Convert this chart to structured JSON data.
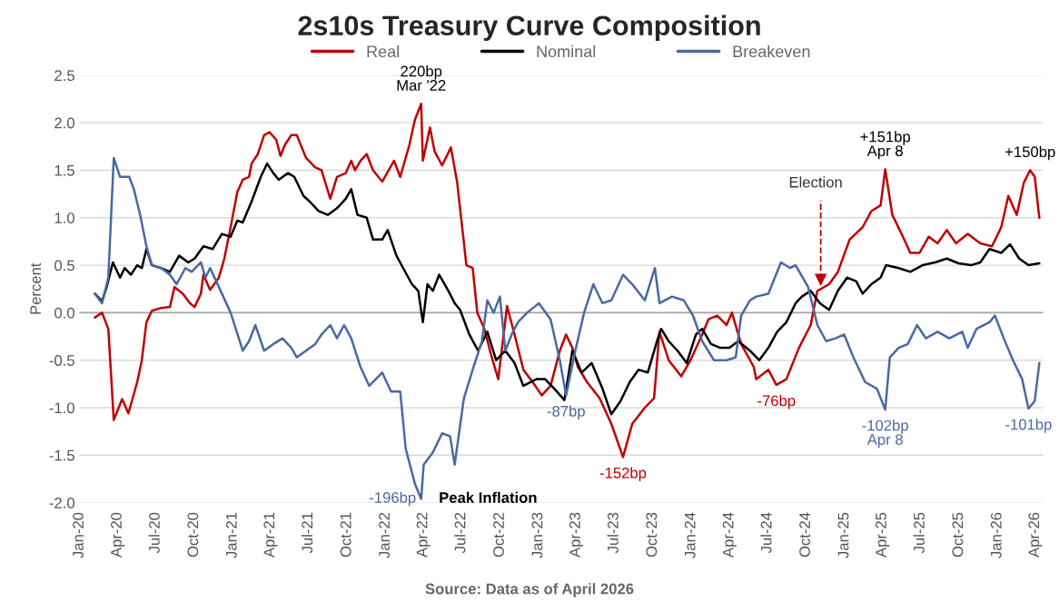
{
  "chart_data": {
    "type": "line",
    "title": "2s10s Treasury Curve Composition",
    "ylabel": "Percent",
    "xlim": [
      "2020-01-01",
      "2026-04-20"
    ],
    "xticks": [
      {
        "value": "2020-01-01",
        "label": "Jan-20"
      },
      {
        "value": "2020-04-01",
        "label": "Apr-20"
      },
      {
        "value": "2020-07-01",
        "label": "Jul-20"
      },
      {
        "value": "2020-10-01",
        "label": "Oct-20"
      },
      {
        "value": "2021-01-01",
        "label": "Jan-21"
      },
      {
        "value": "2021-04-01",
        "label": "Apr-21"
      },
      {
        "value": "2021-07-01",
        "label": "Jul-21"
      },
      {
        "value": "2021-10-01",
        "label": "Oct-21"
      },
      {
        "value": "2022-01-01",
        "label": "Jan-22"
      },
      {
        "value": "2022-04-01",
        "label": "Apr-22"
      },
      {
        "value": "2022-07-01",
        "label": "Jul-22"
      },
      {
        "value": "2022-10-01",
        "label": "Oct-22"
      },
      {
        "value": "2023-01-01",
        "label": "Jan-23"
      },
      {
        "value": "2023-04-01",
        "label": "Apr-23"
      },
      {
        "value": "2023-07-01",
        "label": "Jul-23"
      },
      {
        "value": "2023-10-01",
        "label": "Oct-23"
      },
      {
        "value": "2024-01-01",
        "label": "Jan-24"
      },
      {
        "value": "2024-04-01",
        "label": "Apr-24"
      },
      {
        "value": "2024-07-01",
        "label": "Jul-24"
      },
      {
        "value": "2024-10-01",
        "label": "Oct-24"
      },
      {
        "value": "2025-01-01",
        "label": "Jan-25"
      },
      {
        "value": "2025-04-01",
        "label": "Apr-25"
      },
      {
        "value": "2025-07-01",
        "label": "Jul-25"
      },
      {
        "value": "2025-10-01",
        "label": "Oct-25"
      },
      {
        "value": "2026-01-01",
        "label": "Jan-26"
      },
      {
        "value": "2026-04-01",
        "label": "Apr-26"
      }
    ],
    "ylim": [
      -2.0,
      2.5
    ],
    "yticks": [
      {
        "value": -2.0,
        "label": "-2.0"
      },
      {
        "value": -1.5,
        "label": "-1.5"
      },
      {
        "value": -1.0,
        "label": "-1.0"
      },
      {
        "value": -0.5,
        "label": "-0.5"
      },
      {
        "value": 0.0,
        "label": "0.0"
      },
      {
        "value": 0.5,
        "label": "0.5"
      },
      {
        "value": 1.0,
        "label": "1.0"
      },
      {
        "value": 1.5,
        "label": "1.5"
      },
      {
        "value": 2.0,
        "label": "2.0"
      },
      {
        "value": 2.5,
        "label": "2.5"
      }
    ],
    "grid": "y",
    "legend": "top",
    "line_style": "solid",
    "ref_lines": [
      {
        "axis": "y",
        "value": 0.0,
        "color": "#a6a6a6"
      },
      {
        "axis": "x",
        "value": "2024-11-05",
        "label": "Election",
        "color": "#c00000",
        "line_style": "dashed"
      }
    ],
    "series": [
      {
        "name": "Real",
        "color": "#c00000",
        "x": [
          "2020-02-07",
          "2020-02-24",
          "2020-03-10",
          "2020-03-23",
          "2020-04-12",
          "2020-04-27",
          "2020-05-18",
          "2020-05-29",
          "2020-06-09",
          "2020-06-22",
          "2020-07-14",
          "2020-08-04",
          "2020-08-15",
          "2020-09-04",
          "2020-09-21",
          "2020-10-02",
          "2020-10-17",
          "2020-10-23",
          "2020-11-08",
          "2020-11-29",
          "2020-12-12",
          "2020-12-27",
          "2021-01-12",
          "2021-01-25",
          "2021-02-09",
          "2021-02-15",
          "2021-03-02",
          "2021-03-17",
          "2021-03-30",
          "2021-04-15",
          "2021-04-25",
          "2021-05-06",
          "2021-05-21",
          "2021-06-03",
          "2021-06-25",
          "2021-07-17",
          "2021-08-01",
          "2021-08-22",
          "2021-09-07",
          "2021-09-28",
          "2021-10-11",
          "2021-10-20",
          "2021-11-02",
          "2021-11-17",
          "2021-12-02",
          "2021-12-24",
          "2022-01-21",
          "2022-02-05",
          "2022-02-27",
          "2022-03-12",
          "2022-03-27",
          "2022-03-31",
          "2022-04-17",
          "2022-04-28",
          "2022-05-16",
          "2022-06-06",
          "2022-06-21",
          "2022-07-13",
          "2022-07-28",
          "2022-08-08",
          "2022-08-25",
          "2022-09-09",
          "2022-09-27",
          "2022-10-18",
          "2022-11-05",
          "2022-11-26",
          "2022-12-18",
          "2023-01-09",
          "2023-01-30",
          "2023-02-21",
          "2023-03-08",
          "2023-03-23",
          "2023-04-05",
          "2023-04-27",
          "2023-05-27",
          "2023-06-24",
          "2023-07-22",
          "2023-08-13",
          "2023-09-12",
          "2023-10-04",
          "2023-10-17",
          "2023-11-08",
          "2023-12-08",
          "2023-12-30",
          "2024-01-27",
          "2024-02-11",
          "2024-03-03",
          "2024-03-25",
          "2024-04-07",
          "2024-04-29",
          "2024-05-29",
          "2024-06-04",
          "2024-07-03",
          "2024-07-22",
          "2024-08-15",
          "2024-09-14",
          "2024-10-12",
          "2024-10-28",
          "2024-11-25",
          "2024-12-16",
          "2025-01-13",
          "2025-02-13",
          "2025-03-06",
          "2025-03-28",
          "2025-04-08",
          "2025-04-25",
          "2025-05-17",
          "2025-06-07",
          "2025-06-29",
          "2025-07-21",
          "2025-08-11",
          "2025-09-02",
          "2025-09-24",
          "2025-10-22",
          "2025-11-21",
          "2025-12-19",
          "2026-01-10",
          "2026-01-27",
          "2026-02-16",
          "2026-03-05",
          "2026-03-20",
          "2026-03-31",
          "2026-04-11"
        ],
        "values": [
          -0.05,
          0.0,
          -0.17,
          -1.13,
          -0.91,
          -1.06,
          -0.73,
          -0.5,
          -0.1,
          0.02,
          0.05,
          0.06,
          0.27,
          0.2,
          0.1,
          0.06,
          0.2,
          0.4,
          0.24,
          0.37,
          0.57,
          0.9,
          1.27,
          1.4,
          1.43,
          1.57,
          1.67,
          1.87,
          1.9,
          1.82,
          1.65,
          1.77,
          1.87,
          1.87,
          1.63,
          1.53,
          1.5,
          1.2,
          1.43,
          1.47,
          1.6,
          1.5,
          1.6,
          1.67,
          1.5,
          1.38,
          1.6,
          1.43,
          1.77,
          2.03,
          2.2,
          1.6,
          1.95,
          1.7,
          1.55,
          1.74,
          1.37,
          0.5,
          0.47,
          0.0,
          -0.17,
          -0.43,
          -0.7,
          0.07,
          -0.23,
          -0.6,
          -0.73,
          -0.87,
          -0.77,
          -0.4,
          -0.23,
          -0.37,
          -0.57,
          -0.73,
          -0.9,
          -1.17,
          -1.52,
          -1.17,
          -1.0,
          -0.9,
          -0.2,
          -0.5,
          -0.67,
          -0.5,
          -0.23,
          -0.07,
          -0.03,
          -0.13,
          0.0,
          -0.33,
          -0.57,
          -0.7,
          -0.6,
          -0.76,
          -0.7,
          -0.37,
          -0.13,
          0.23,
          0.3,
          0.43,
          0.77,
          0.9,
          1.07,
          1.13,
          1.51,
          1.03,
          0.83,
          0.63,
          0.63,
          0.8,
          0.73,
          0.87,
          0.73,
          0.83,
          0.73,
          0.7,
          0.9,
          1.23,
          1.03,
          1.37,
          1.5,
          1.43,
          1.0
        ]
      },
      {
        "name": "Nominal",
        "color": "#000000",
        "x": [
          "2020-02-07",
          "2020-02-24",
          "2020-03-06",
          "2020-03-21",
          "2020-04-07",
          "2020-04-18",
          "2020-05-03",
          "2020-05-18",
          "2020-05-29",
          "2020-06-09",
          "2020-06-22",
          "2020-07-14",
          "2020-08-04",
          "2020-08-26",
          "2020-09-17",
          "2020-10-02",
          "2020-10-23",
          "2020-11-14",
          "2020-12-06",
          "2020-12-27",
          "2021-01-12",
          "2021-01-25",
          "2021-02-15",
          "2021-03-09",
          "2021-03-24",
          "2021-04-08",
          "2021-04-21",
          "2021-05-13",
          "2021-05-28",
          "2021-06-19",
          "2021-07-04",
          "2021-07-25",
          "2021-08-16",
          "2021-09-07",
          "2021-09-28",
          "2021-10-11",
          "2021-10-26",
          "2021-11-17",
          "2021-12-02",
          "2021-12-24",
          "2022-01-06",
          "2022-01-27",
          "2022-02-12",
          "2022-03-05",
          "2022-03-20",
          "2022-03-31",
          "2022-04-11",
          "2022-04-24",
          "2022-05-09",
          "2022-05-31",
          "2022-06-15",
          "2022-06-28",
          "2022-07-20",
          "2022-08-10",
          "2022-09-01",
          "2022-09-22",
          "2022-10-14",
          "2022-11-05",
          "2022-11-26",
          "2022-12-27",
          "2023-01-17",
          "2023-02-08",
          "2023-03-04",
          "2023-03-23",
          "2023-04-14",
          "2023-05-08",
          "2023-06-03",
          "2023-06-24",
          "2023-07-16",
          "2023-08-07",
          "2023-08-28",
          "2023-09-19",
          "2023-10-11",
          "2023-10-21",
          "2023-11-08",
          "2023-11-29",
          "2023-12-21",
          "2024-01-12",
          "2024-01-27",
          "2024-02-17",
          "2024-03-10",
          "2024-04-01",
          "2024-04-22",
          "2024-05-20",
          "2024-06-11",
          "2024-07-03",
          "2024-07-24",
          "2024-08-15",
          "2024-09-06",
          "2024-09-21",
          "2024-10-12",
          "2024-11-03",
          "2024-11-25",
          "2024-12-16",
          "2025-01-07",
          "2025-01-29",
          "2025-02-13",
          "2025-03-06",
          "2025-03-28",
          "2025-04-10",
          "2025-05-10",
          "2025-06-07",
          "2025-07-06",
          "2025-08-05",
          "2025-09-02",
          "2025-09-30",
          "2025-10-30",
          "2025-11-21",
          "2025-12-13",
          "2026-01-10",
          "2026-01-31",
          "2026-02-22",
          "2026-03-16",
          "2026-04-11"
        ],
        "values": [
          0.2,
          0.12,
          0.27,
          0.53,
          0.37,
          0.47,
          0.4,
          0.5,
          0.47,
          0.67,
          0.5,
          0.47,
          0.43,
          0.6,
          0.53,
          0.57,
          0.7,
          0.67,
          0.83,
          0.8,
          0.97,
          0.95,
          1.17,
          1.43,
          1.57,
          1.47,
          1.4,
          1.47,
          1.43,
          1.23,
          1.17,
          1.07,
          1.03,
          1.1,
          1.2,
          1.3,
          1.03,
          1.0,
          0.77,
          0.77,
          0.87,
          0.6,
          0.47,
          0.3,
          0.23,
          -0.1,
          0.3,
          0.23,
          0.4,
          0.23,
          0.1,
          0.03,
          -0.23,
          -0.4,
          -0.2,
          -0.5,
          -0.4,
          -0.53,
          -0.77,
          -0.7,
          -0.7,
          -0.8,
          -0.92,
          -0.4,
          -0.63,
          -0.53,
          -0.8,
          -1.07,
          -0.93,
          -0.73,
          -0.6,
          -0.63,
          -0.3,
          -0.17,
          -0.3,
          -0.4,
          -0.53,
          -0.23,
          -0.17,
          -0.33,
          -0.37,
          -0.37,
          -0.3,
          -0.4,
          -0.5,
          -0.37,
          -0.2,
          -0.1,
          0.1,
          0.17,
          0.23,
          0.1,
          0.03,
          0.23,
          0.37,
          0.33,
          0.2,
          0.3,
          0.37,
          0.5,
          0.47,
          0.43,
          0.5,
          0.53,
          0.57,
          0.52,
          0.5,
          0.53,
          0.67,
          0.63,
          0.72,
          0.57,
          0.5,
          0.52
        ]
      },
      {
        "name": "Breakeven",
        "color": "#4a69a3",
        "x": [
          "2020-02-07",
          "2020-02-24",
          "2020-03-10",
          "2020-03-23",
          "2020-04-07",
          "2020-04-29",
          "2020-05-10",
          "2020-05-25",
          "2020-06-09",
          "2020-06-22",
          "2020-07-14",
          "2020-08-04",
          "2020-08-20",
          "2020-09-10",
          "2020-09-25",
          "2020-10-17",
          "2020-10-28",
          "2020-11-08",
          "2020-11-29",
          "2020-12-27",
          "2021-01-25",
          "2021-02-09",
          "2021-02-24",
          "2021-03-17",
          "2021-04-08",
          "2021-04-30",
          "2021-05-21",
          "2021-06-03",
          "2021-06-25",
          "2021-07-17",
          "2021-08-01",
          "2021-08-22",
          "2021-09-07",
          "2021-09-24",
          "2021-10-11",
          "2021-11-02",
          "2021-11-23",
          "2021-12-24",
          "2022-01-14",
          "2022-02-05",
          "2022-02-18",
          "2022-03-12",
          "2022-03-27",
          "2022-04-02",
          "2022-04-24",
          "2022-05-16",
          "2022-06-04",
          "2022-06-15",
          "2022-07-07",
          "2022-07-28",
          "2022-08-19",
          "2022-09-01",
          "2022-09-16",
          "2022-10-01",
          "2022-10-14",
          "2022-10-29",
          "2022-11-13",
          "2022-12-05",
          "2023-01-02",
          "2023-01-30",
          "2023-02-21",
          "2023-03-08",
          "2023-03-30",
          "2023-04-20",
          "2023-05-12",
          "2023-06-03",
          "2023-06-24",
          "2023-07-22",
          "2023-08-13",
          "2023-09-12",
          "2023-10-06",
          "2023-10-17",
          "2023-11-16",
          "2023-12-14",
          "2024-01-05",
          "2024-01-27",
          "2024-02-24",
          "2024-03-25",
          "2024-04-16",
          "2024-04-29",
          "2024-05-20",
          "2024-06-04",
          "2024-07-03",
          "2024-08-02",
          "2024-08-24",
          "2024-09-06",
          "2024-10-06",
          "2024-10-28",
          "2024-11-18",
          "2024-12-10",
          "2024-12-31",
          "2025-01-22",
          "2025-02-19",
          "2025-03-19",
          "2025-04-08",
          "2025-04-19",
          "2025-05-10",
          "2025-06-01",
          "2025-06-23",
          "2025-07-14",
          "2025-08-11",
          "2025-09-08",
          "2025-10-09",
          "2025-10-22",
          "2025-11-12",
          "2025-12-13",
          "2025-12-26",
          "2026-01-16",
          "2026-02-07",
          "2026-03-01",
          "2026-03-16",
          "2026-03-31",
          "2026-04-11"
        ],
        "values": [
          0.2,
          0.1,
          0.37,
          1.63,
          1.43,
          1.43,
          1.3,
          1.03,
          0.7,
          0.5,
          0.47,
          0.4,
          0.3,
          0.47,
          0.43,
          0.53,
          0.37,
          0.47,
          0.27,
          0.0,
          -0.4,
          -0.3,
          -0.13,
          -0.4,
          -0.33,
          -0.27,
          -0.37,
          -0.47,
          -0.4,
          -0.33,
          -0.23,
          -0.13,
          -0.27,
          -0.13,
          -0.27,
          -0.57,
          -0.77,
          -0.63,
          -0.83,
          -0.83,
          -1.43,
          -1.8,
          -1.96,
          -1.6,
          -1.47,
          -1.27,
          -1.3,
          -1.6,
          -0.9,
          -0.6,
          -0.3,
          0.13,
          0.0,
          0.17,
          -0.4,
          -0.23,
          -0.1,
          0.0,
          0.1,
          -0.07,
          -0.5,
          -0.87,
          -0.4,
          0.0,
          0.3,
          0.1,
          0.13,
          0.4,
          0.3,
          0.13,
          0.47,
          0.1,
          0.17,
          0.13,
          -0.03,
          -0.3,
          -0.5,
          -0.5,
          -0.47,
          -0.03,
          0.13,
          0.17,
          0.2,
          0.53,
          0.47,
          0.5,
          0.27,
          -0.13,
          -0.3,
          -0.27,
          -0.23,
          -0.47,
          -0.73,
          -0.8,
          -1.02,
          -0.47,
          -0.37,
          -0.33,
          -0.13,
          -0.27,
          -0.2,
          -0.27,
          -0.2,
          -0.37,
          -0.17,
          -0.1,
          -0.03,
          -0.27,
          -0.5,
          -0.7,
          -1.01,
          -0.93,
          -0.53
        ]
      }
    ],
    "annotations": [
      {
        "text": "220bp\nMar '22",
        "x": "2022-03-27",
        "y": 2.2
      },
      {
        "text": "-196bp",
        "x": "2022-03-27",
        "y": -1.96
      },
      {
        "text": "Peak Inflation",
        "x": "2022-03-27",
        "y": -1.96
      },
      {
        "text": "-87bp",
        "x": "2023-03-08",
        "y": -0.87
      },
      {
        "text": "-152bp",
        "x": "2023-07-22",
        "y": -1.52
      },
      {
        "text": "-76bp",
        "x": "2024-07-22",
        "y": -0.76
      },
      {
        "text": "+151bp\nApr 8",
        "x": "2025-04-08",
        "y": 1.51
      },
      {
        "text": "-102bp\nApr 8",
        "x": "2025-04-08",
        "y": -1.02
      },
      {
        "text": "+150bp",
        "x": "2026-03-20",
        "y": 1.5
      },
      {
        "text": "-101bp",
        "x": "2026-03-16",
        "y": -1.01
      },
      "Source: Data as of April 2026"
    ]
  }
}
